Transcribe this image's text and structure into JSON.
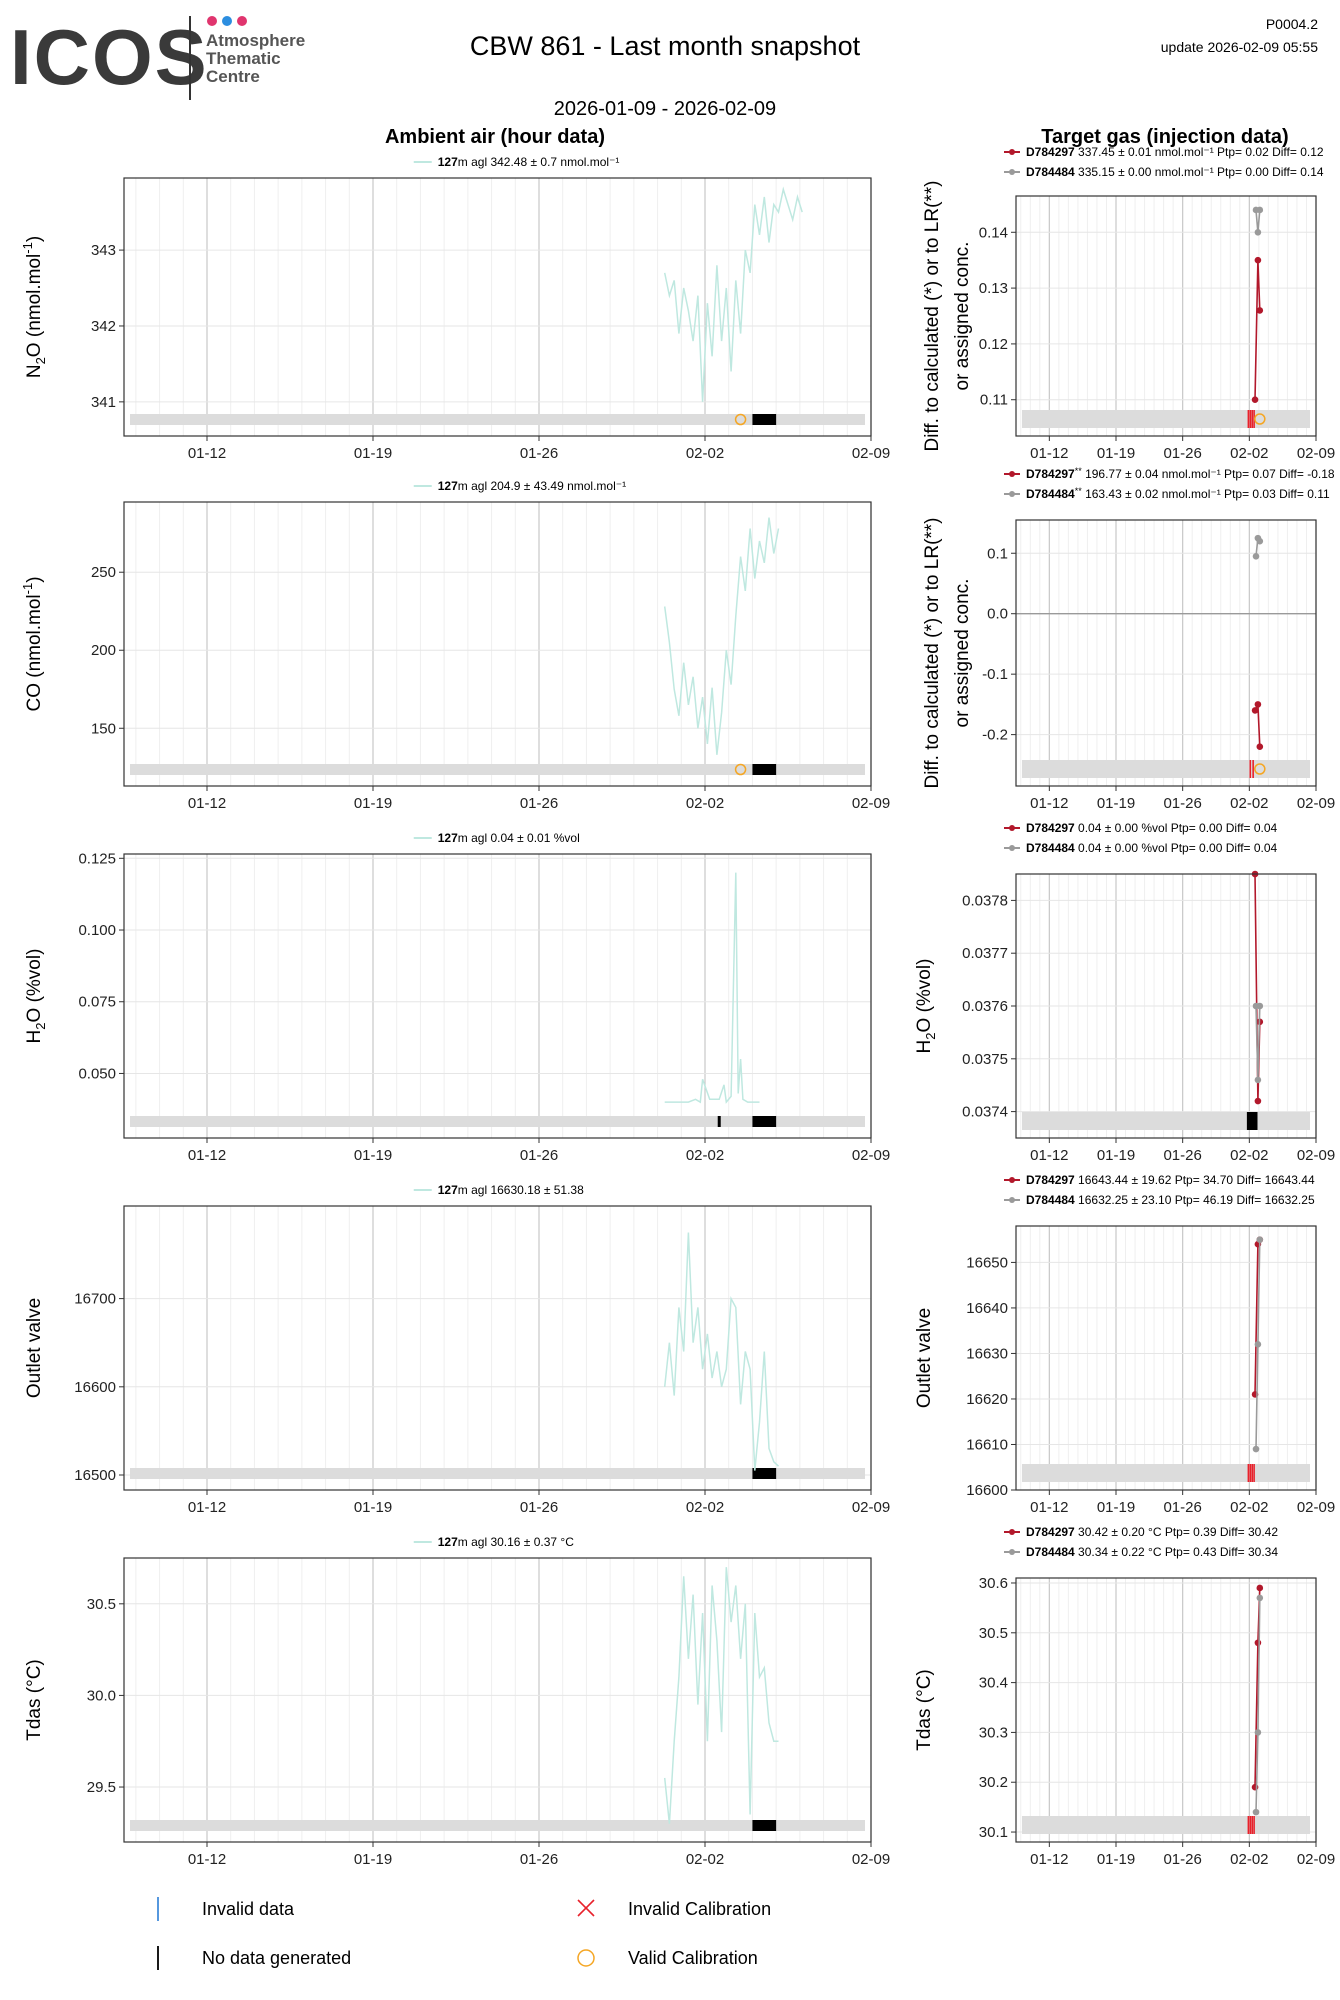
{
  "header": {
    "logo_text": "ICOS",
    "logo_sub": [
      "Atmosphere",
      "Thematic",
      "Centre"
    ],
    "logo_dot_colors": [
      "#e0356e",
      "#2c8ee0",
      "#e0356e"
    ],
    "title": "CBW 861 - Last month snapshot",
    "date_range": "2026-01-09 - 2026-02-09",
    "product_code": "P0004.2",
    "update": "update  2026-02-09 05:55"
  },
  "sections": {
    "left_title": "Ambient air (hour data)",
    "right_title": "Target gas (injection data)"
  },
  "colors": {
    "ambient_line": "#bfe8e0",
    "target_red": "#b2182b",
    "target_grey": "#9a9a9a",
    "flag_band": "#dcdcdc",
    "valid_calibration": "#f5a623",
    "invalid_calibration": "#e8212b",
    "invalid_data": "#2c7fd6"
  },
  "legend": {
    "invalid_data": "Invalid data",
    "no_data": "No data generated",
    "invalid_calibration": "Invalid Calibration",
    "valid_calibration": "Valid Calibration"
  },
  "chart_data": [
    {
      "type": "line",
      "panel": "ambient",
      "ylabel": "N2O (nmol.mol-1)",
      "ylabel_parts": [
        "N",
        "2",
        "O (nmol.mol",
        "-1",
        ")"
      ],
      "legend_bold": "127",
      "legend_rest": "m agl 342.48 ± 0.7 nmol.mol⁻¹",
      "x_ticks": [
        "01-12",
        "01-19",
        "01-26",
        "02-02",
        "02-09"
      ],
      "y_ticks": [
        341,
        342,
        343
      ],
      "ylim": [
        340.55,
        343.95
      ],
      "series": [
        {
          "name": "127m agl",
          "x": [
            22.3,
            22.5,
            22.7,
            22.9,
            23.1,
            23.3,
            23.5,
            23.7,
            23.9,
            24.1,
            24.3,
            24.5,
            24.7,
            24.9,
            25.1,
            25.3,
            25.5,
            25.7,
            25.9,
            26.1,
            26.3,
            26.5,
            26.7,
            26.9,
            27.1,
            27.3,
            27.5,
            27.7,
            27.9,
            28.1
          ],
          "y": [
            342.7,
            342.4,
            342.6,
            341.9,
            342.5,
            342.2,
            341.8,
            342.4,
            341.0,
            342.3,
            341.6,
            342.8,
            341.8,
            342.5,
            341.4,
            342.6,
            341.9,
            343.0,
            342.7,
            343.6,
            343.2,
            343.7,
            343.1,
            343.6,
            343.5,
            343.8,
            343.6,
            343.4,
            343.7,
            343.5
          ]
        }
      ],
      "calibration_valid": [
        {
          "x": 25.5
        }
      ],
      "nodata_blocks": [
        [
          26.0,
          27.0
        ]
      ]
    },
    {
      "type": "line",
      "panel": "target",
      "ylabel": "Diff. to calculated (*) or to LR(**) or assigned conc.",
      "ylabel_lines": [
        "Diff. to calculated (*) or to LR(**)",
        "or assigned conc."
      ],
      "legend": [
        {
          "id": "D784297",
          "suffix": "",
          "text": "337.45 ± 0.01 nmol.mol⁻¹ Ptp= 0.02 Diff= 0.12"
        },
        {
          "id": "D784484",
          "suffix": "",
          "text": "335.15 ± 0.00 nmol.mol⁻¹ Ptp= 0.00 Diff= 0.14"
        }
      ],
      "x_ticks": [
        "01-12",
        "01-19",
        "01-26",
        "02-02",
        "02-09"
      ],
      "y_ticks": [
        "0.11",
        "0.12",
        "0.13",
        "0.14"
      ],
      "ylim": [
        0.1035,
        0.1465
      ],
      "series": [
        {
          "name": "D784297",
          "x": [
            24.6,
            24.9,
            25.1
          ],
          "y": [
            0.11,
            0.135,
            0.126
          ]
        },
        {
          "name": "D784484",
          "x": [
            24.7,
            24.9,
            25.1
          ],
          "y": [
            0.144,
            0.14,
            0.144
          ]
        }
      ],
      "calibration_valid": [
        {
          "x": 25.1
        }
      ],
      "invalid_calib_ticks": [
        23.9,
        24.1,
        24.3,
        24.5
      ]
    },
    {
      "type": "line",
      "panel": "ambient",
      "ylabel": "CO (nmol.mol-1)",
      "ylabel_parts": [
        "",
        "",
        "CO (nmol.mol",
        "-1",
        ")"
      ],
      "legend_bold": "127",
      "legend_rest": "m agl 204.9 ± 43.49 nmol.mol⁻¹",
      "x_ticks": [
        "01-12",
        "01-19",
        "01-26",
        "02-02",
        "02-09"
      ],
      "y_ticks": [
        150,
        200,
        250
      ],
      "ylim": [
        113,
        295
      ],
      "series": [
        {
          "name": "127m agl",
          "x": [
            22.3,
            22.5,
            22.7,
            22.9,
            23.1,
            23.3,
            23.5,
            23.7,
            23.9,
            24.1,
            24.3,
            24.5,
            24.7,
            24.9,
            25.1,
            25.3,
            25.5,
            25.7,
            25.9,
            26.1,
            26.3,
            26.5,
            26.7,
            26.9,
            27.1
          ],
          "y": [
            228,
            205,
            175,
            158,
            192,
            165,
            183,
            150,
            170,
            140,
            176,
            133,
            160,
            200,
            178,
            222,
            260,
            238,
            278,
            246,
            270,
            256,
            285,
            262,
            278
          ]
        }
      ],
      "calibration_valid": [
        {
          "x": 25.5
        }
      ],
      "nodata_blocks": [
        [
          26.0,
          27.0
        ]
      ]
    },
    {
      "type": "line",
      "panel": "target",
      "ylabel": "Diff. to calculated (*) or to LR(**) or assigned conc.",
      "ylabel_lines": [
        "Diff. to calculated (*) or to LR(**)",
        "or assigned conc."
      ],
      "legend": [
        {
          "id": "D784297",
          "suffix": "**",
          "text": "196.77 ± 0.04 nmol.mol⁻¹ Ptp= 0.07 Diff= -0.18"
        },
        {
          "id": "D784484",
          "suffix": "**",
          "text": "163.43 ± 0.02 nmol.mol⁻¹ Ptp= 0.03 Diff= 0.11"
        }
      ],
      "x_ticks": [
        "01-12",
        "01-19",
        "01-26",
        "02-02",
        "02-09"
      ],
      "y_ticks": [
        "-0.2",
        "-0.1",
        "0.0",
        "0.1"
      ],
      "ylim": [
        -0.285,
        0.155
      ],
      "zero_line": true,
      "series": [
        {
          "name": "D784297",
          "x": [
            24.6,
            24.9,
            25.1
          ],
          "y": [
            -0.16,
            -0.15,
            -0.22
          ]
        },
        {
          "name": "D784484",
          "x": [
            24.7,
            24.9,
            25.1
          ],
          "y": [
            0.095,
            0.125,
            0.12
          ]
        }
      ],
      "calibration_valid": [
        {
          "x": 25.1
        }
      ],
      "invalid_calib_ticks": [
        24.1,
        24.4
      ]
    },
    {
      "type": "line",
      "panel": "ambient",
      "ylabel": "H2O (%vol)",
      "ylabel_parts": [
        "H",
        "2",
        "O (%vol)",
        "",
        ""
      ],
      "legend_bold": "127",
      "legend_rest": "m agl 0.04 ± 0.01 %vol",
      "x_ticks": [
        "01-12",
        "01-19",
        "01-26",
        "02-02",
        "02-09"
      ],
      "y_ticks": [
        "0.050",
        "0.075",
        "0.100",
        "0.125"
      ],
      "ylim": [
        0.0275,
        0.1265
      ],
      "series": [
        {
          "name": "127m agl",
          "x": [
            22.3,
            22.8,
            23.3,
            23.6,
            23.8,
            23.9,
            24.2,
            24.6,
            24.8,
            24.9,
            25.1,
            25.3,
            25.4,
            25.5,
            25.6,
            25.8,
            26.0,
            26.3
          ],
          "y": [
            0.04,
            0.04,
            0.04,
            0.041,
            0.04,
            0.048,
            0.041,
            0.041,
            0.046,
            0.04,
            0.042,
            0.12,
            0.043,
            0.055,
            0.041,
            0.04,
            0.04,
            0.04
          ]
        }
      ],
      "nodata_blocks": [
        [
          26.0,
          27.0
        ]
      ],
      "nodata_ticks": [
        24.6
      ]
    },
    {
      "type": "line",
      "panel": "target",
      "ylabel": "H2O (%vol)",
      "ylabel_parts": [
        "H",
        "2",
        "O (%vol)",
        "",
        ""
      ],
      "legend": [
        {
          "id": "D784297",
          "suffix": "",
          "text": "0.04 ± 0.00 %vol Ptp= 0.00 Diff= 0.04"
        },
        {
          "id": "D784484",
          "suffix": "",
          "text": "0.04 ± 0.00 %vol Ptp= 0.00 Diff= 0.04"
        }
      ],
      "x_ticks": [
        "01-12",
        "01-19",
        "01-26",
        "02-02",
        "02-09"
      ],
      "y_ticks": [
        "0.0374",
        "0.0375",
        "0.0376",
        "0.0377",
        "0.0378"
      ],
      "ylim": [
        0.03735,
        0.03785
      ],
      "series": [
        {
          "name": "D784297",
          "x": [
            24.6,
            24.9,
            25.1
          ],
          "y": [
            0.03785,
            0.03742,
            0.03757
          ]
        },
        {
          "name": "D784484",
          "x": [
            24.7,
            24.9,
            25.1
          ],
          "y": [
            0.0376,
            0.03746,
            0.0376
          ]
        }
      ],
      "nodata_ticks": [
        23.9,
        24.1,
        24.3,
        24.5,
        24.7
      ]
    },
    {
      "type": "line",
      "panel": "ambient",
      "ylabel": "Outlet valve",
      "ylabel_parts": [
        "",
        "",
        "Outlet valve",
        "",
        ""
      ],
      "legend_bold": "127",
      "legend_rest": "m agl 16630.18 ± 51.38",
      "x_ticks": [
        "01-12",
        "01-19",
        "01-26",
        "02-02",
        "02-09"
      ],
      "y_ticks": [
        16500,
        16600,
        16700
      ],
      "ylim": [
        16483,
        16805
      ],
      "series": [
        {
          "name": "127m agl",
          "x": [
            22.3,
            22.5,
            22.7,
            22.9,
            23.1,
            23.3,
            23.5,
            23.7,
            23.9,
            24.1,
            24.3,
            24.5,
            24.7,
            24.9,
            25.1,
            25.3,
            25.5,
            25.7,
            25.9,
            26.1,
            26.3,
            26.5,
            26.7,
            26.9,
            27.1
          ],
          "y": [
            16600,
            16650,
            16590,
            16690,
            16640,
            16775,
            16650,
            16690,
            16620,
            16660,
            16610,
            16640,
            16600,
            16620,
            16700,
            16690,
            16580,
            16640,
            16620,
            16505,
            16560,
            16640,
            16530,
            16515,
            16510
          ]
        }
      ],
      "nodata_blocks": [
        [
          26.0,
          27.0
        ]
      ]
    },
    {
      "type": "line",
      "panel": "target",
      "ylabel": "Outlet valve",
      "ylabel_parts": [
        "",
        "",
        "Outlet valve",
        "",
        ""
      ],
      "legend": [
        {
          "id": "D784297",
          "suffix": "",
          "text": "16643.44 ± 19.62  Ptp= 34.70 Diff= 16643.44"
        },
        {
          "id": "D784484",
          "suffix": "",
          "text": "16632.25 ± 23.10  Ptp= 46.19 Diff= 16632.25"
        }
      ],
      "x_ticks": [
        "01-12",
        "01-19",
        "01-26",
        "02-02",
        "02-09"
      ],
      "y_ticks": [
        16600,
        16610,
        16620,
        16630,
        16640,
        16650
      ],
      "ylim": [
        16600,
        16658
      ],
      "series": [
        {
          "name": "D784297",
          "x": [
            24.6,
            24.9,
            25.1
          ],
          "y": [
            16621,
            16654,
            16655
          ]
        },
        {
          "name": "D784484",
          "x": [
            24.7,
            24.9,
            25.1
          ],
          "y": [
            16609,
            16632,
            16655
          ]
        }
      ],
      "invalid_calib_ticks": [
        23.9,
        24.1,
        24.3,
        24.5
      ]
    },
    {
      "type": "line",
      "panel": "ambient",
      "ylabel": "Tdas (°C)",
      "ylabel_parts": [
        "",
        "",
        "Tdas (°C)",
        "",
        ""
      ],
      "legend_bold": "127",
      "legend_rest": "m agl 30.16 ± 0.37 °C",
      "x_ticks": [
        "01-12",
        "01-19",
        "01-26",
        "02-02",
        "02-09"
      ],
      "y_ticks": [
        "29.5",
        "30.0",
        "30.5"
      ],
      "ylim": [
        29.2,
        30.75
      ],
      "series": [
        {
          "name": "127m agl",
          "x": [
            22.3,
            22.5,
            22.7,
            22.9,
            23.1,
            23.3,
            23.5,
            23.7,
            23.9,
            24.1,
            24.3,
            24.5,
            24.7,
            24.9,
            25.1,
            25.3,
            25.5,
            25.7,
            25.9,
            26.1,
            26.3,
            26.5,
            26.7,
            26.9,
            27.1
          ],
          "y": [
            29.55,
            29.3,
            29.75,
            30.1,
            30.65,
            30.2,
            30.55,
            29.95,
            30.45,
            29.75,
            30.6,
            30.3,
            29.8,
            30.7,
            30.4,
            30.6,
            30.2,
            30.5,
            29.35,
            30.45,
            30.1,
            30.15,
            29.85,
            29.75,
            29.75
          ]
        }
      ],
      "nodata_blocks": [
        [
          26.0,
          27.0
        ]
      ]
    },
    {
      "type": "line",
      "panel": "target",
      "ylabel": "Tdas (°C)",
      "ylabel_parts": [
        "",
        "",
        "Tdas (°C)",
        "",
        ""
      ],
      "legend": [
        {
          "id": "D784297",
          "suffix": "",
          "text": "30.42 ± 0.20 °C Ptp= 0.39 Diff= 30.42"
        },
        {
          "id": "D784484",
          "suffix": "",
          "text": "30.34 ± 0.22 °C Ptp= 0.43 Diff= 30.34"
        }
      ],
      "x_ticks": [
        "01-12",
        "01-19",
        "01-26",
        "02-02",
        "02-09"
      ],
      "y_ticks": [
        "30.1",
        "30.2",
        "30.3",
        "30.4",
        "30.5",
        "30.6"
      ],
      "ylim": [
        30.08,
        30.61
      ],
      "series": [
        {
          "name": "D784297",
          "x": [
            24.6,
            24.9,
            25.1
          ],
          "y": [
            30.19,
            30.48,
            30.59
          ]
        },
        {
          "name": "D784484",
          "x": [
            24.7,
            24.9,
            25.1
          ],
          "y": [
            30.14,
            30.3,
            30.57
          ]
        }
      ],
      "invalid_calib_ticks": [
        23.9,
        24.1,
        24.3,
        24.5
      ]
    }
  ]
}
